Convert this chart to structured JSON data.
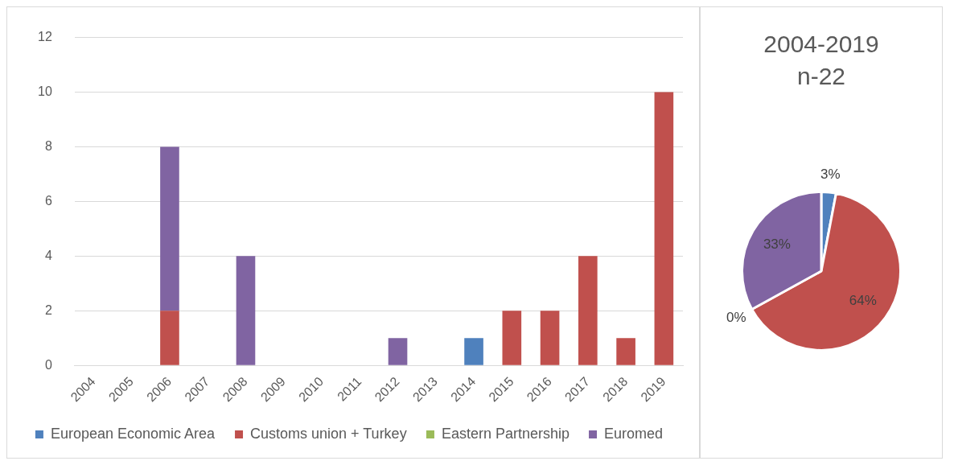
{
  "chart_data": [
    {
      "type": "bar",
      "stacked": true,
      "categories": [
        "2004",
        "2005",
        "2006",
        "2007",
        "2008",
        "2009",
        "2010",
        "2011",
        "2012",
        "2013",
        "2014",
        "2015",
        "2016",
        "2017",
        "2018",
        "2019"
      ],
      "series": [
        {
          "name": "European Economic Area",
          "color": "#4f81bd",
          "values": [
            0,
            0,
            0,
            0,
            0,
            0,
            0,
            0,
            0,
            0,
            1,
            0,
            0,
            0,
            0,
            0
          ]
        },
        {
          "name": "Customs union + Turkey",
          "color": "#c0504d",
          "values": [
            0,
            0,
            2,
            0,
            0,
            0,
            0,
            0,
            0,
            0,
            0,
            2,
            2,
            4,
            1,
            10
          ]
        },
        {
          "name": "Eastern Partnership",
          "color": "#9bbb59",
          "values": [
            0,
            0,
            0,
            0,
            0,
            0,
            0,
            0,
            0,
            0,
            0,
            0,
            0,
            0,
            0,
            0
          ]
        },
        {
          "name": "Euromed",
          "color": "#8064a2",
          "values": [
            0,
            0,
            6,
            0,
            4,
            0,
            0,
            0,
            1,
            0,
            0,
            0,
            0,
            0,
            0,
            0
          ]
        }
      ],
      "ylim": [
        0,
        12
      ],
      "yticks": [
        0,
        2,
        4,
        6,
        8,
        10,
        12
      ],
      "grid": "y",
      "legend": "bottom"
    },
    {
      "type": "pie",
      "title": "2004-2019",
      "subtitle": "n-22",
      "categories": [
        null,
        null,
        null,
        null
      ],
      "values": [
        3,
        64,
        0,
        33
      ],
      "colors": [
        "#4f81bd",
        "#c0504d",
        "#9bbb59",
        "#8064a2"
      ],
      "value_labels": [
        "3%",
        "64%",
        "0%",
        "33%"
      ]
    }
  ]
}
